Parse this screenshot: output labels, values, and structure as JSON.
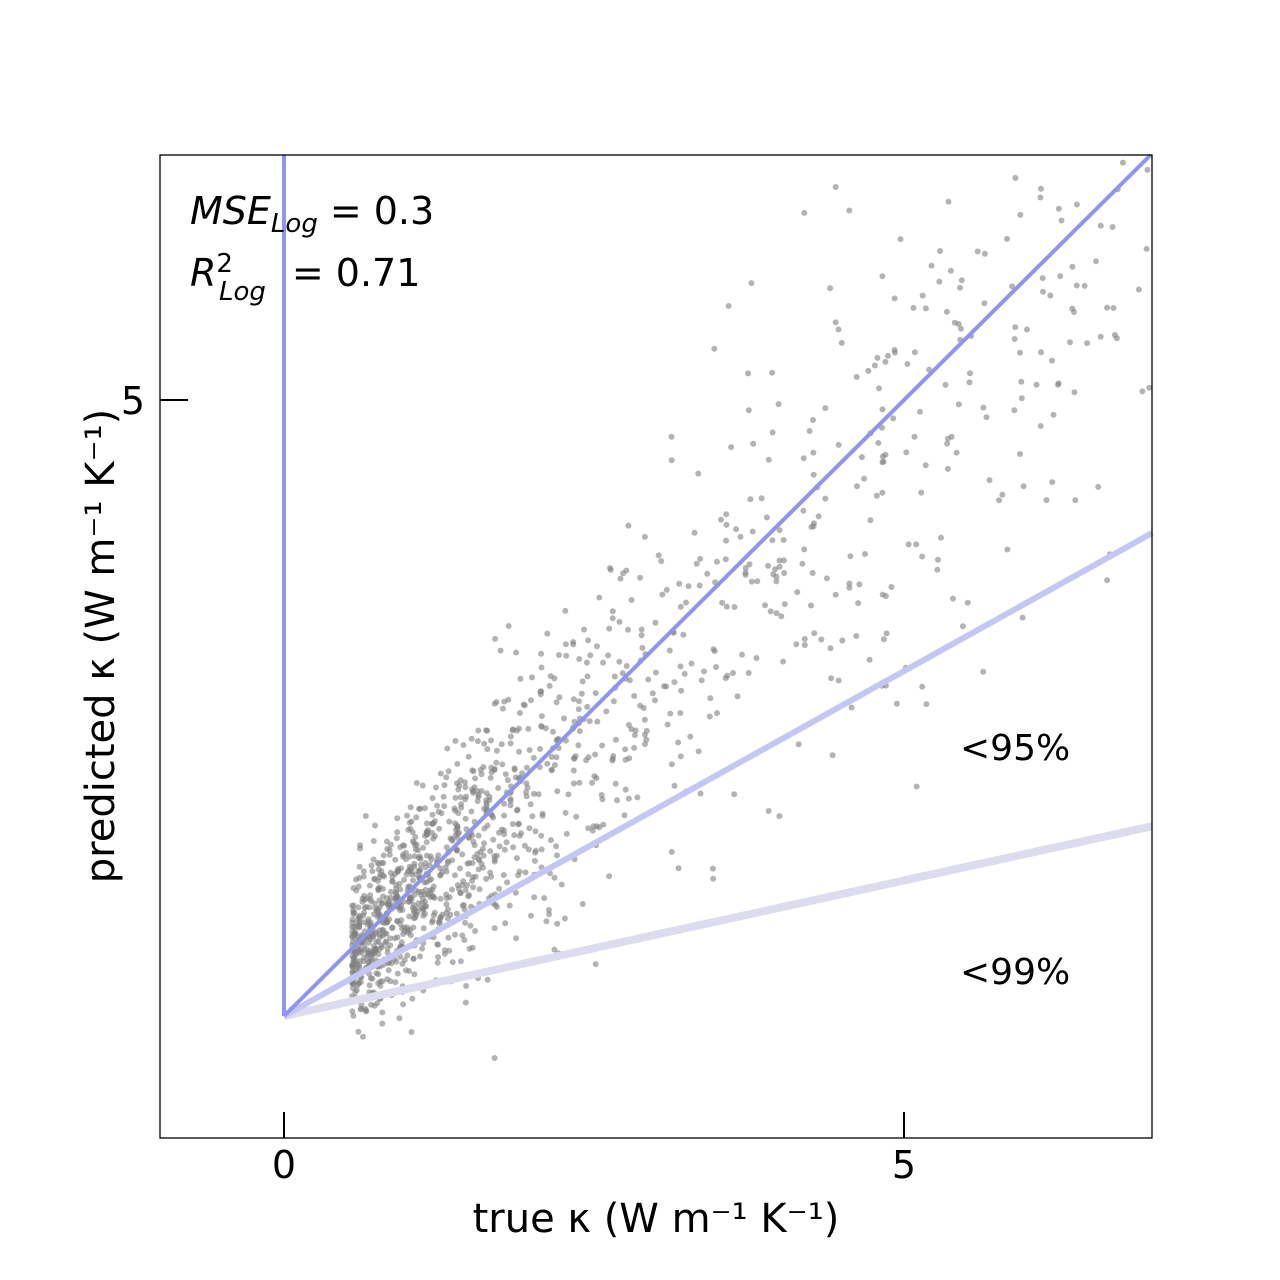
{
  "chart_data": {
    "type": "scatter",
    "xlabel": "true κ (W m⁻¹ K⁻¹)",
    "ylabel": "predicted κ (W m⁻¹ K⁻¹)",
    "xlim": [
      -1.0,
      7.0
    ],
    "ylim": [
      -1.0,
      7.0
    ],
    "x_ticks": [
      "0",
      "5"
    ],
    "y_ticks": [
      "5"
    ],
    "metrics": {
      "mse_label": "MSE",
      "mse_sub": "Log",
      "mse_value": "= 0.3",
      "r2_label": "R",
      "r2_sup": "2",
      "r2_sub": "Log",
      "r2_value": "= 0.71"
    },
    "reference_lines": [
      {
        "label": "",
        "slope": 1.0,
        "color": "#8f95ee"
      },
      {
        "label": "<95%",
        "slope": 0.56,
        "color": "#c4c6f3"
      },
      {
        "label": "<99%",
        "slope": 0.22,
        "color": "#dcdcee"
      }
    ],
    "vertical_line_x": 0,
    "line_origin": [
      0,
      0
    ],
    "scatter_color": "#808080",
    "grid": false,
    "legend": "none",
    "n_points": 1400
  }
}
